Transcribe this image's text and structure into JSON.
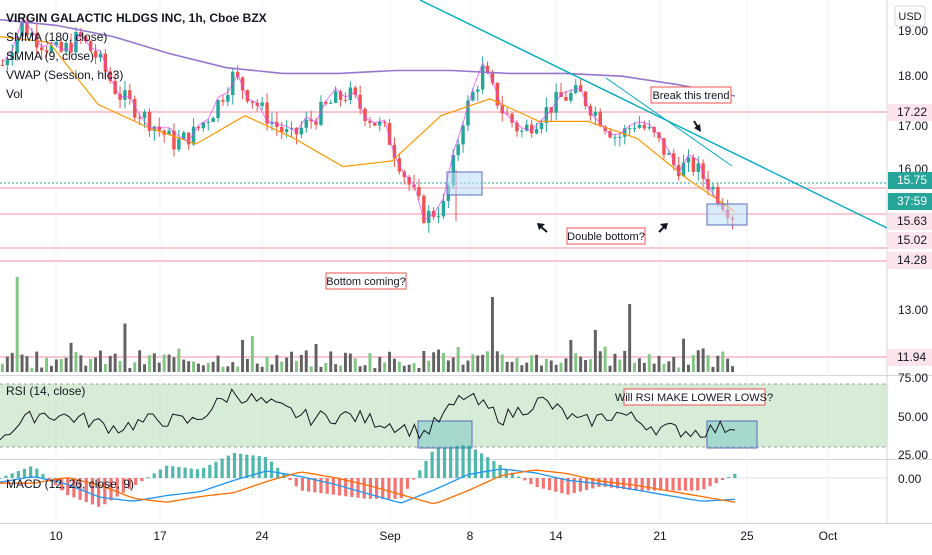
{
  "header": {
    "title": "VIRGIN GALACTIC HLDGS INC, 1h, Cboe BZX",
    "indicators": [
      "SMMA (180, close)",
      "SMMA (9, close)",
      "VWAP (Session, hlc3)",
      "Vol"
    ]
  },
  "currency_button": "USD",
  "colors": {
    "up": "#26a69a",
    "down": "#ef5350",
    "smma180": "#9575cd",
    "smma9": "#ff9800",
    "vwap": "#e040fb",
    "trendline": "#00acc1",
    "level": "#f7a8b4",
    "rsi_band": "#c8e6c9",
    "rsi_box": "#80cbc4",
    "dbox": "#bbdefb",
    "volume_up": "#81c784",
    "volume_down": "#616161",
    "macd": "#2196f3",
    "signal": "#ff6d00"
  },
  "price_axis": {
    "ticks": [
      "19.00",
      "18.00",
      "17.00",
      "16.00",
      "13.00"
    ],
    "tags": [
      {
        "label": "17.22",
        "value": 17.22,
        "style": "level"
      },
      {
        "label": "15.75",
        "value": 15.75,
        "style": "current"
      },
      {
        "label": "37:59",
        "value": 15.55,
        "style": "timer"
      },
      {
        "label": "15.63",
        "value": 15.63,
        "style": "level"
      },
      {
        "label": "15.02",
        "value": 15.02,
        "style": "level"
      },
      {
        "label": "14.28",
        "value": 14.28,
        "style": "level"
      },
      {
        "label": "11.94",
        "value": 11.94,
        "style": "level"
      }
    ]
  },
  "rsi_axis": {
    "ticks": [
      "75.00",
      "50.00",
      "25.00"
    ]
  },
  "macd_axis": {
    "ticks": [
      "0.00"
    ]
  },
  "time_axis": {
    "labels": [
      "10",
      "17",
      "24",
      "Sep",
      "8",
      "14",
      "21",
      "25",
      "Oct"
    ]
  },
  "rsi_legend": "RSI (14, close)",
  "macd_legend": "MACD (12, 26, close, 9)",
  "notes": {
    "break_trend": "Break this trend",
    "double_bottom": "Double bottom?",
    "bottom_coming": "Bottom coming?",
    "rsi_lows": "Will RSI MAKE LOWER LOWS?"
  },
  "chart_data": {
    "type": "candlestick",
    "symbol": "VIRGIN GALACTIC HLDGS INC",
    "interval": "1h",
    "ylim": [
      13.6,
      19.3
    ],
    "levels": [
      17.22,
      15.75,
      15.63,
      15.02,
      14.28
    ],
    "rsi_range": [
      25,
      75
    ],
    "series": [
      {
        "name": "SMMA (180, close)",
        "values": [
          19.2,
          19.1,
          18.9,
          18.6,
          18.35,
          18.25,
          18.25,
          18.3,
          18.3,
          18.25,
          18.25,
          18.2,
          18.05,
          17.85
        ]
      },
      {
        "name": "SMMA (9, close)",
        "values": [
          18.9,
          18.8,
          17.7,
          17.3,
          17.0,
          17.5,
          17.1,
          16.6,
          16.7,
          17.5,
          17.8,
          17.4,
          17.4,
          17.1,
          16.4,
          15.8
        ]
      },
      {
        "name": "RSI (14, close)",
        "values": [
          34,
          52,
          48,
          40,
          47,
          45,
          68,
          58,
          48,
          50,
          44,
          36,
          66,
          48,
          62,
          44,
          52,
          40,
          37,
          42
        ]
      }
    ],
    "price_path": [
      18.4,
      19.1,
      18.8,
      18.6,
      18.9,
      18.5,
      17.9,
      17.6,
      17.3,
      17.0,
      17.2,
      17.6,
      18.2,
      17.8,
      17.4,
      17.1,
      17.4,
      17.7,
      17.9,
      17.5,
      17.2,
      16.4,
      15.7,
      15.9,
      17.5,
      18.3,
      17.6,
      17.2,
      17.5,
      17.8,
      17.9,
      17.5,
      17.1,
      17.4,
      17.1,
      16.6,
      16.6,
      16.2,
      15.75
    ],
    "macd_values": [
      0.02,
      0.05,
      0.01,
      -0.06,
      -0.08,
      -0.05,
      -0.03,
      0.03,
      0.08,
      0.05,
      0.01,
      -0.04,
      -0.09,
      -0.02,
      0.06,
      0.09,
      0.07,
      0.03,
      0.01,
      -0.02,
      -0.05,
      -0.08,
      -0.07
    ]
  }
}
